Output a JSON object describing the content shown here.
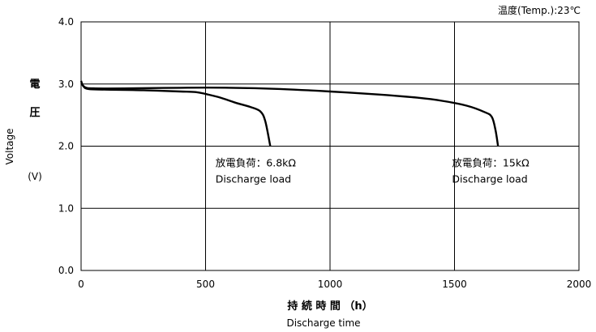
{
  "header": {
    "temperature_label": "温度(Temp.):23℃"
  },
  "axes": {
    "y_label_jp_chars": [
      "電",
      "圧"
    ],
    "y_label_en": "Voltage",
    "y_unit": "(V)",
    "x_label_jp": "持 続 時 間 （h）",
    "x_label_en": "Discharge time"
  },
  "chart_data": {
    "type": "line",
    "title": "",
    "xlabel": "Discharge time",
    "ylabel": "Voltage",
    "xlim": [
      0,
      2000
    ],
    "ylim": [
      0,
      4.0
    ],
    "x_ticks": [
      "0",
      "500",
      "1000",
      "1500",
      "2000"
    ],
    "y_ticks": [
      "0.0",
      "1.0",
      "2.0",
      "3.0",
      "4.0"
    ],
    "grid": true,
    "series": [
      {
        "points": [
          [
            0,
            3.05
          ],
          [
            10,
            2.96
          ],
          [
            30,
            2.92
          ],
          [
            100,
            2.91
          ],
          [
            250,
            2.9
          ],
          [
            400,
            2.88
          ],
          [
            460,
            2.87
          ],
          [
            500,
            2.84
          ],
          [
            560,
            2.78
          ],
          [
            620,
            2.7
          ],
          [
            680,
            2.63
          ],
          [
            720,
            2.56
          ],
          [
            740,
            2.4
          ],
          [
            760,
            2.0
          ]
        ]
      },
      {
        "points": [
          [
            0,
            3.02
          ],
          [
            15,
            2.95
          ],
          [
            50,
            2.93
          ],
          [
            200,
            2.93
          ],
          [
            400,
            2.94
          ],
          [
            600,
            2.94
          ],
          [
            800,
            2.92
          ],
          [
            1000,
            2.88
          ],
          [
            1200,
            2.83
          ],
          [
            1350,
            2.78
          ],
          [
            1450,
            2.73
          ],
          [
            1550,
            2.65
          ],
          [
            1620,
            2.55
          ],
          [
            1650,
            2.47
          ],
          [
            1665,
            2.25
          ],
          [
            1675,
            2.0
          ]
        ]
      }
    ],
    "annotations": [
      {
        "line1": "放電負荷：6.8kΩ",
        "line2": "Discharge load",
        "x": 540,
        "y": 2.0
      },
      {
        "line1": "放電負荷：15kΩ",
        "line2": "Discharge load",
        "x": 1490,
        "y": 2.0
      }
    ]
  }
}
